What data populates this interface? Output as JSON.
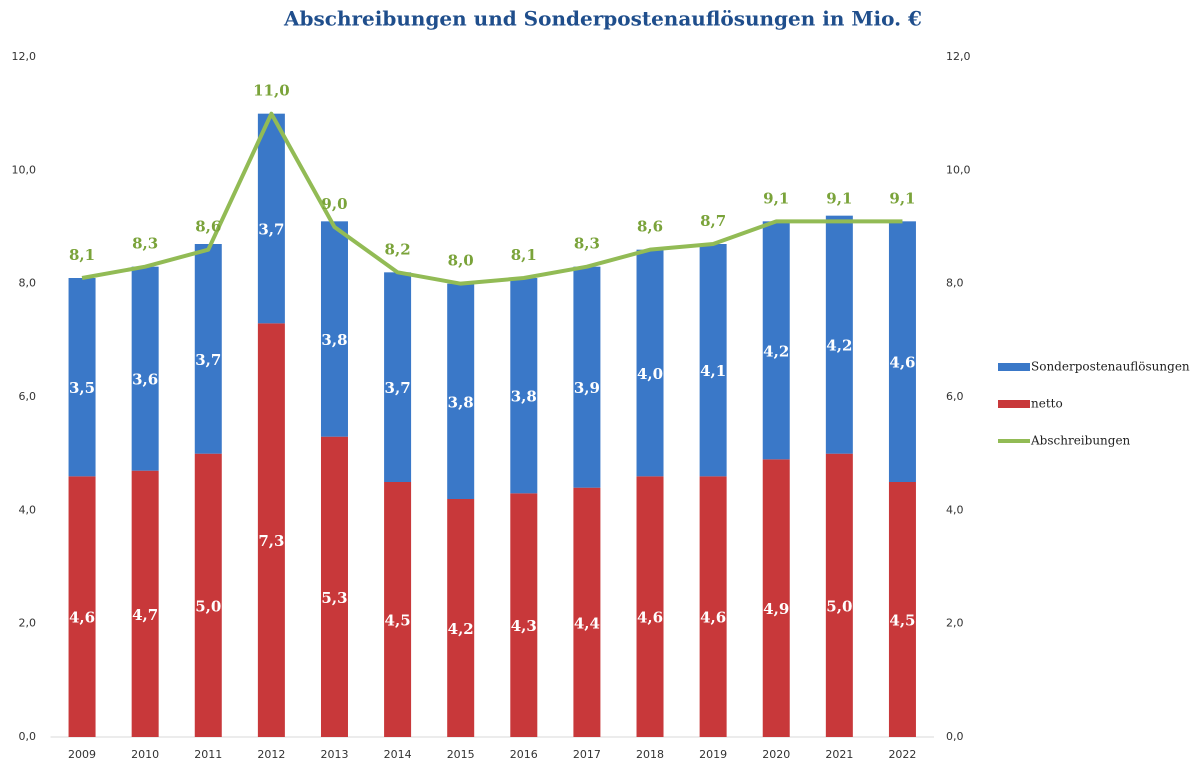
{
  "chart_data": {
    "type": "bar",
    "stacked": true,
    "title": "Abschreibungen und Sonderpostenauflösungen in Mio. €",
    "categories": [
      "2009",
      "2010",
      "2011",
      "2012",
      "2013",
      "2014",
      "2015",
      "2016",
      "2017",
      "2018",
      "2019",
      "2020",
      "2021",
      "2022"
    ],
    "series": [
      {
        "name": "netto",
        "color": "#c8383a",
        "type": "bar",
        "values": [
          4.6,
          4.7,
          5.0,
          7.3,
          5.3,
          4.5,
          4.2,
          4.3,
          4.4,
          4.6,
          4.6,
          4.9,
          5.0,
          4.5
        ],
        "value_labels": [
          "4,6",
          "4,7",
          "5,0",
          "7,3",
          "5,3",
          "4,5",
          "4,2",
          "4,3",
          "4,4",
          "4,6",
          "4,6",
          "4,9",
          "5,0",
          "4,5"
        ]
      },
      {
        "name": "Sonderpostenauflösungen",
        "color": "#3a78c8",
        "type": "bar",
        "values": [
          3.5,
          3.6,
          3.7,
          3.7,
          3.8,
          3.7,
          3.8,
          3.8,
          3.9,
          4.0,
          4.1,
          4.2,
          4.2,
          4.6
        ],
        "value_labels": [
          "3,5",
          "3,6",
          "3,7",
          "3,7",
          "3,8",
          "3,7",
          "3,8",
          "3,8",
          "3,9",
          "4,0",
          "4,1",
          "4,2",
          "4,2",
          "4,6"
        ]
      },
      {
        "name": "Abschreibungen",
        "color": "#92bb55",
        "type": "line",
        "axis": "y2",
        "values": [
          8.1,
          8.3,
          8.6,
          11.0,
          9.0,
          8.2,
          8.0,
          8.1,
          8.3,
          8.6,
          8.7,
          9.1,
          9.1,
          9.1
        ],
        "value_labels": [
          "8,1",
          "8,3",
          "8,6",
          "11,0",
          "9,0",
          "8,2",
          "8,0",
          "8,1",
          "8,3",
          "8,6",
          "8,7",
          "9,1",
          "9,1",
          "9,1"
        ]
      }
    ],
    "ylim": [
      0,
      12
    ],
    "yticks": [
      {
        "value": 0,
        "label": "0,0"
      },
      {
        "value": 2,
        "label": "2,0"
      },
      {
        "value": 4,
        "label": "4,0"
      },
      {
        "value": 6,
        "label": "6,0"
      },
      {
        "value": 8,
        "label": "8,0"
      },
      {
        "value": 10,
        "label": "10,0"
      },
      {
        "value": 12,
        "label": "12,0"
      }
    ],
    "y2lim": [
      0,
      12
    ],
    "y2ticks": [
      {
        "value": 0,
        "label": "0,0"
      },
      {
        "value": 2,
        "label": "2,0"
      },
      {
        "value": 4,
        "label": "4,0"
      },
      {
        "value": 6,
        "label": "6,0"
      },
      {
        "value": 8,
        "label": "8,0"
      },
      {
        "value": 10,
        "label": "10,0"
      },
      {
        "value": 12,
        "label": "12,0"
      }
    ],
    "legend": "right"
  }
}
